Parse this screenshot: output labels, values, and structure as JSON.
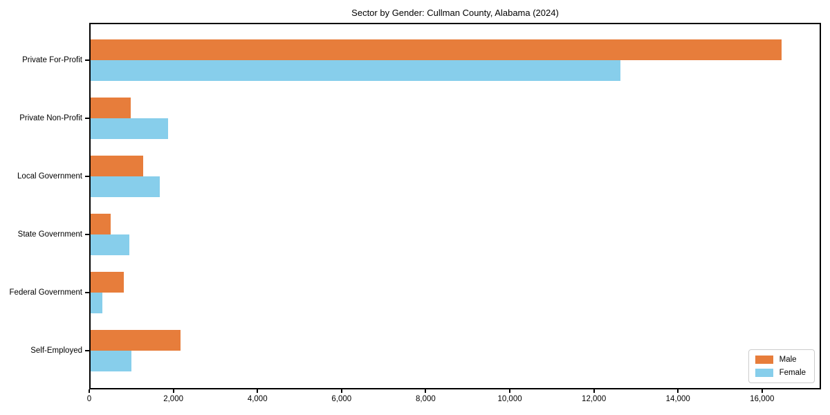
{
  "chart_data": {
    "type": "bar",
    "orientation": "horizontal",
    "title": "Sector by Gender: Cullman County, Alabama (2024)",
    "categories": [
      "Private For-Profit",
      "Private Non-Profit",
      "Local Government",
      "State Government",
      "Federal Government",
      "Self-Employed"
    ],
    "series": [
      {
        "name": "Male",
        "color": "#E77D3B",
        "values": [
          16500,
          950,
          1250,
          480,
          800,
          2150
        ]
      },
      {
        "name": "Female",
        "color": "#87CEEB",
        "values": [
          12650,
          1850,
          1650,
          925,
          280,
          975
        ]
      }
    ],
    "xlabel": "",
    "ylabel": "",
    "xlim": [
      0,
      17400
    ],
    "xticks": [
      0,
      2000,
      4000,
      6000,
      8000,
      10000,
      12000,
      14000,
      16000
    ],
    "xtick_labels": [
      "0",
      "2,000",
      "4,000",
      "6,000",
      "8,000",
      "10,000",
      "12,000",
      "14,000",
      "16,000"
    ],
    "grid": false,
    "legend": {
      "position": "lower right",
      "items": [
        "Male",
        "Female"
      ]
    },
    "colors": {
      "male": "#E77D3B",
      "female": "#87CEEB",
      "axis": "#000000",
      "legend_border": "#cccccc",
      "background": "#ffffff"
    }
  }
}
